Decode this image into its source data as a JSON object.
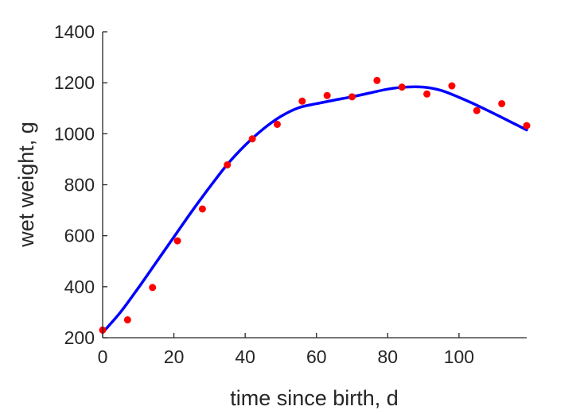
{
  "chart_data": {
    "type": "scatter",
    "title": "",
    "xlabel": "time since birth, d",
    "ylabel": "wet weight, g",
    "xlim": [
      0,
      119
    ],
    "ylim": [
      200,
      1400
    ],
    "xticks": [
      0,
      20,
      40,
      60,
      80,
      100
    ],
    "yticks": [
      200,
      400,
      600,
      800,
      1000,
      1200,
      1400
    ],
    "grid": false,
    "colors": {
      "points": "#ff0000",
      "line": "#0000ff",
      "axis": "#262626"
    },
    "series": [
      {
        "kind": "scatter",
        "x": [
          0,
          7,
          14,
          21,
          28,
          35,
          42,
          49,
          56,
          63,
          70,
          77,
          84,
          91,
          98,
          105,
          112,
          119
        ],
        "y": [
          230,
          270,
          397,
          580,
          705,
          878,
          980,
          1037,
          1128,
          1150,
          1145,
          1209,
          1183,
          1156,
          1188,
          1091,
          1118,
          1032
        ]
      },
      {
        "kind": "line",
        "x": [
          0,
          5,
          10,
          15,
          20,
          25,
          30,
          35,
          40,
          45,
          50,
          55,
          60,
          65,
          70,
          75,
          80,
          85,
          90,
          95,
          100,
          105,
          110,
          115,
          119
        ],
        "y": [
          220,
          300,
          395,
          495,
          595,
          695,
          790,
          880,
          955,
          1018,
          1068,
          1102,
          1118,
          1132,
          1145,
          1160,
          1175,
          1183,
          1183,
          1170,
          1143,
          1112,
          1078,
          1043,
          1015
        ]
      }
    ]
  }
}
